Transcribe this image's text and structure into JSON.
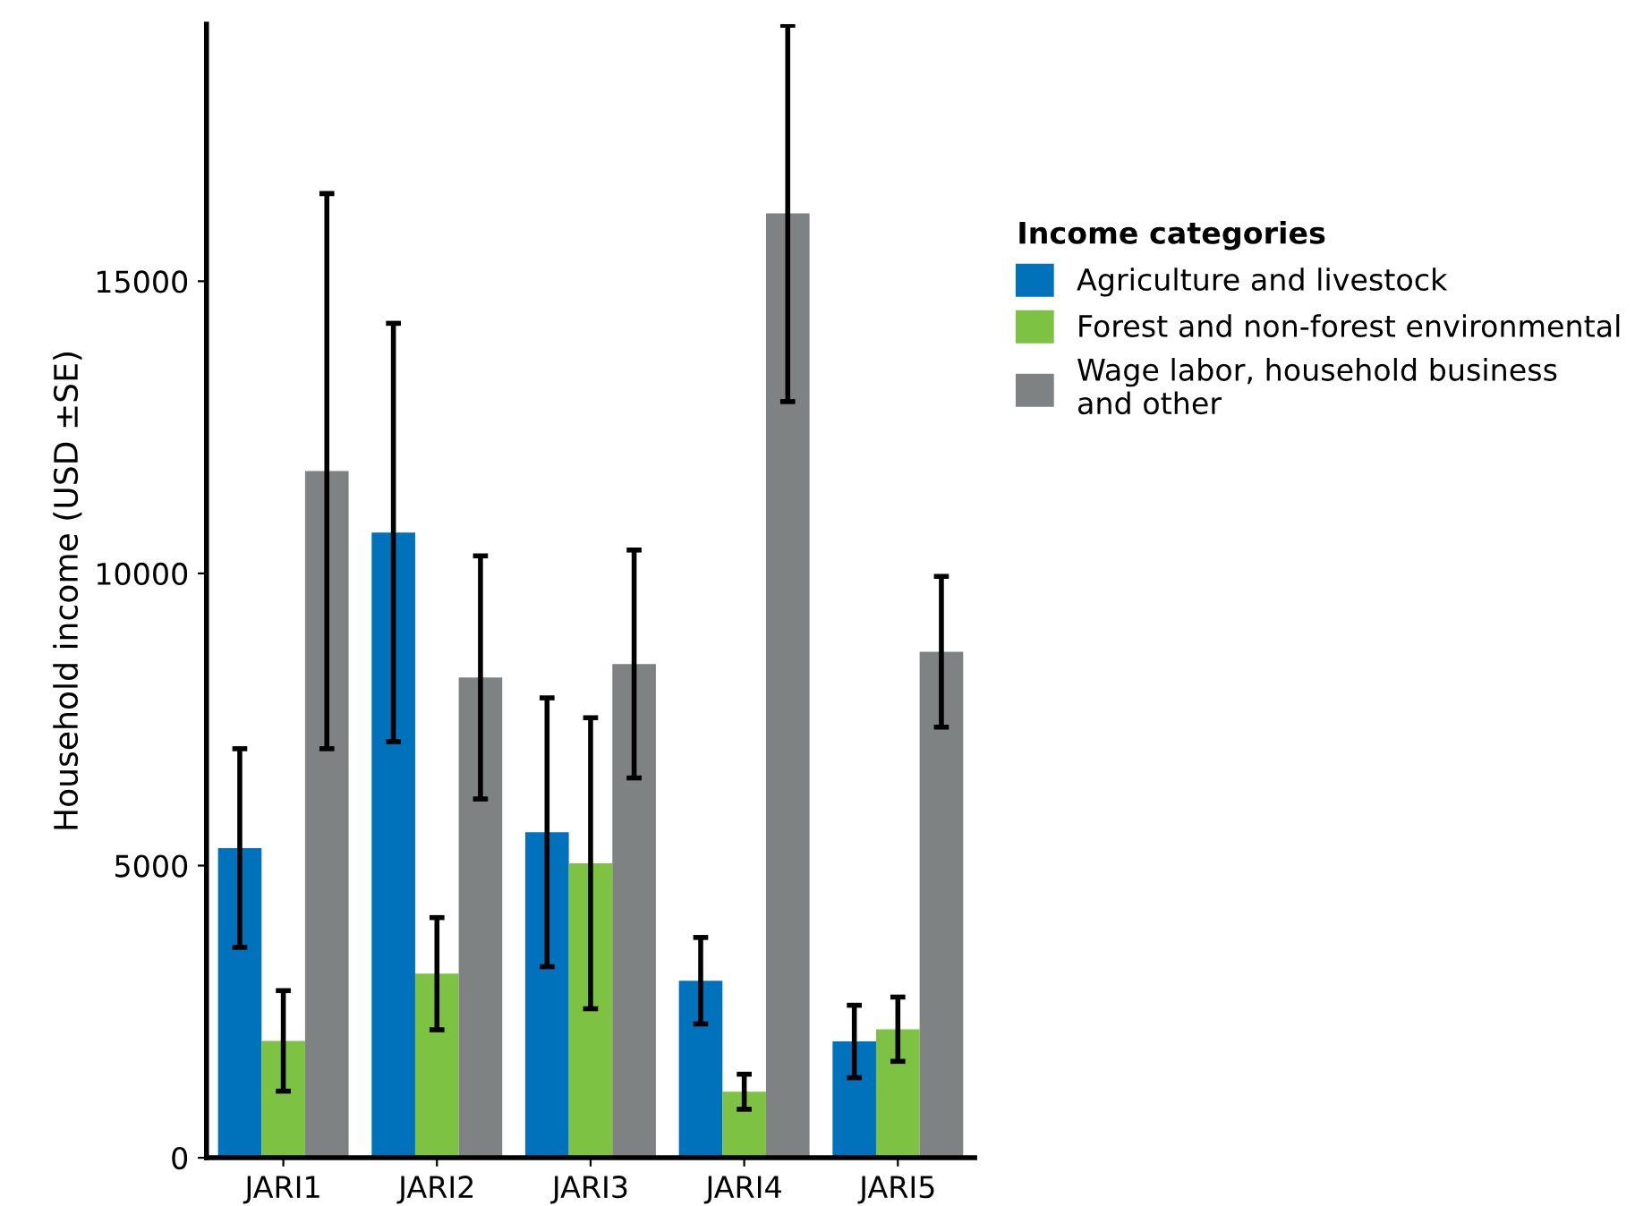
{
  "chart_data": {
    "type": "bar",
    "ylabel": "Household income (USD ±SE)",
    "legend_title": "Income categories",
    "legend": "right",
    "categories": [
      "JARI1",
      "JARI2",
      "JARI3",
      "JARI4",
      "JARI5"
    ],
    "series": [
      {
        "name": "Agriculture and livestock",
        "color": "#0072bc",
        "values": [
          5300,
          10700,
          5570,
          3030,
          1990
        ],
        "errors": [
          1700,
          3580,
          2300,
          740,
          620
        ]
      },
      {
        "name": "Forest and non-forest environmental",
        "color": "#7dc242",
        "values": [
          2000,
          3150,
          5040,
          1130,
          2200
        ],
        "errors": [
          860,
          960,
          2490,
          300,
          550
        ]
      },
      {
        "name": "Wage labor, household business\nand other",
        "color": "#7f8282",
        "values": [
          11750,
          8220,
          8450,
          16160,
          8660
        ],
        "errors": [
          4750,
          2080,
          1950,
          3220,
          1290
        ]
      }
    ],
    "ylim": [
      0,
      19400
    ],
    "yticks": [
      0,
      5000,
      10000,
      15000
    ],
    "grid": false
  }
}
